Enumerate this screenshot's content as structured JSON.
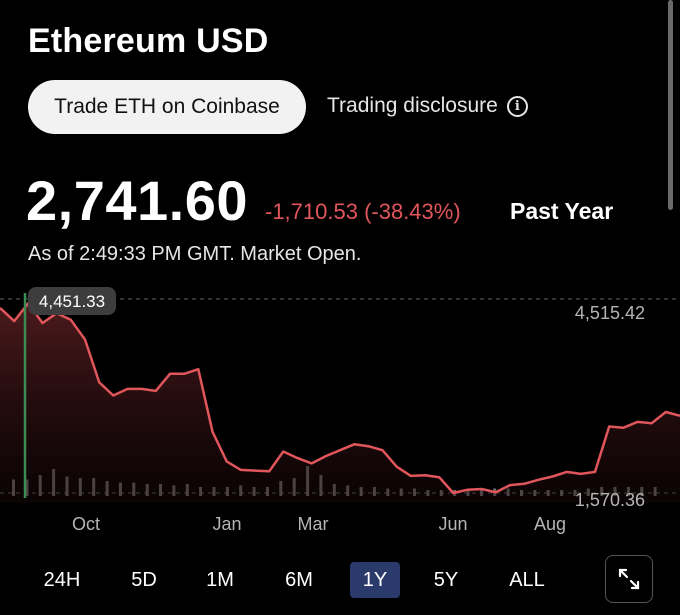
{
  "header": {
    "title": "Ethereum USD",
    "trade_button": "Trade ETH on Coinbase",
    "disclosure_label": "Trading disclosure",
    "info_glyph": "i"
  },
  "quote": {
    "price": "2,741.60",
    "change": "-1,710.53 (-38.43%)",
    "period": "Past Year",
    "as_of": "As of 2:49:33 PM GMT. Market Open."
  },
  "colors": {
    "line": "#e0565b",
    "negative": "#e0565b",
    "active_range": "#2a3a6b"
  },
  "chart_data": {
    "type": "line",
    "x_tick_labels": [
      "Oct",
      "Jan",
      "Mar",
      "Jun",
      "Aug"
    ],
    "y_reference_labels": {
      "high": "4,515.42",
      "low": "1,570.36"
    },
    "y_reference_values": [
      4515.42,
      1570.36
    ],
    "tooltip": {
      "label": "4,451.33",
      "value": 4451.33
    },
    "ylim": [
      1570,
      4515
    ],
    "grid": false,
    "series": [
      {
        "values": [
          4380,
          4180,
          4451,
          4150,
          4300,
          4200,
          3900,
          3250,
          3050,
          3150,
          3150,
          3120,
          3380,
          3380,
          3450,
          2500,
          2050,
          1920,
          1910,
          1900,
          2200,
          2100,
          2020,
          2130,
          2220,
          2310,
          2280,
          2220,
          1970,
          1830,
          1840,
          1810,
          1570,
          1620,
          1630,
          1580,
          1690,
          1710,
          1770,
          1820,
          1890,
          1860,
          1890,
          2580,
          2560,
          2650,
          2630,
          2800,
          2742
        ]
      }
    ],
    "volume": [
      0.55,
      0.55,
      0.7,
      0.9,
      0.65,
      0.6,
      0.6,
      0.5,
      0.45,
      0.45,
      0.4,
      0.4,
      0.35,
      0.4,
      0.3,
      0.3,
      0.3,
      0.35,
      0.3,
      0.3,
      0.5,
      0.6,
      1.0,
      0.7,
      0.4,
      0.35,
      0.3,
      0.3,
      0.25,
      0.25,
      0.25,
      0.2,
      0.2,
      0.2,
      0.2,
      0.2,
      0.25,
      0.25,
      0.2,
      0.2,
      0.2,
      0.2,
      0.2,
      0.25,
      0.3,
      0.3,
      0.3,
      0.3,
      0.3
    ]
  },
  "ranges": [
    {
      "label": "24H",
      "active": false
    },
    {
      "label": "5D",
      "active": false
    },
    {
      "label": "1M",
      "active": false
    },
    {
      "label": "6M",
      "active": false
    },
    {
      "label": "1Y",
      "active": true
    },
    {
      "label": "5Y",
      "active": false
    },
    {
      "label": "ALL",
      "active": false
    }
  ],
  "expand_icon": "expand-arrows-icon"
}
